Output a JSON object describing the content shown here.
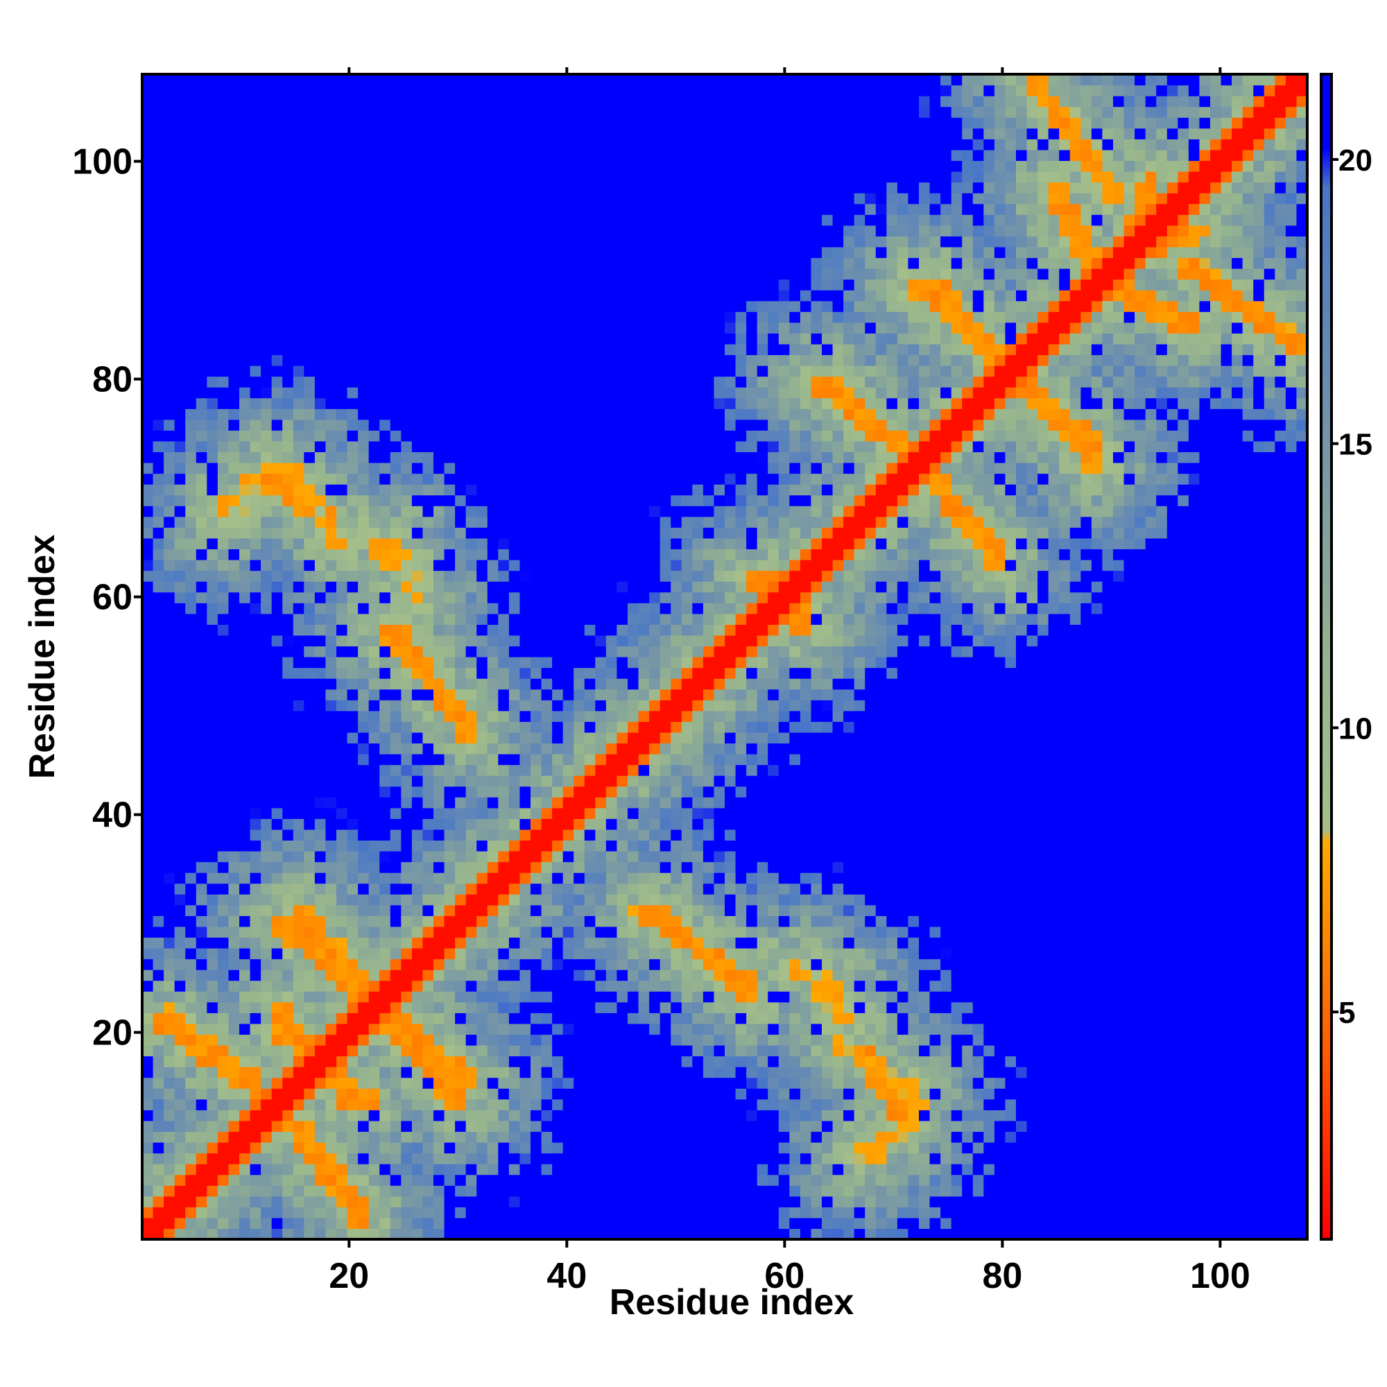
{
  "chart_data": {
    "type": "heatmap",
    "title": "",
    "xlabel": "Residue index",
    "ylabel": "Residue index",
    "n_residues": 108,
    "xlim": [
      1,
      108
    ],
    "ylim": [
      1,
      108
    ],
    "x_ticks": [
      20,
      40,
      60,
      80,
      100
    ],
    "y_ticks": [
      20,
      40,
      60,
      80,
      100
    ],
    "colorbar": {
      "range": [
        1,
        21.5
      ],
      "ticks": [
        5,
        10,
        15,
        20
      ],
      "stops": [
        {
          "value": 1,
          "color": "#ff0000"
        },
        {
          "value": 4.5,
          "color": "#ff6000"
        },
        {
          "value": 8,
          "color": "#ffaa00"
        },
        {
          "value": 8.2,
          "color": "#a6bf8a"
        },
        {
          "value": 11,
          "color": "#96b48e"
        },
        {
          "value": 15,
          "color": "#7595a8"
        },
        {
          "value": 19.5,
          "color": "#4876c8"
        },
        {
          "value": 20.2,
          "color": "#0000ff"
        },
        {
          "value": 21.5,
          "color": "#0000ff"
        }
      ]
    },
    "structure": {
      "diagonal": "value ~1-4 along i = j",
      "contact_bands": [
        {
          "from": [
            13,
            20
          ],
          "to": [
            22,
            13
          ],
          "value": 6
        },
        {
          "from": [
            2,
            21
          ],
          "to": [
            13,
            13
          ],
          "value": 6
        },
        {
          "from": [
            15,
            31
          ],
          "to": [
            22,
            23
          ],
          "value": 6
        },
        {
          "from": [
            23,
            21
          ],
          "to": [
            30,
            13
          ],
          "value": 6
        },
        {
          "from": [
            15,
            11
          ],
          "to": [
            21,
            3
          ],
          "value": 6
        },
        {
          "from": [
            24,
            57
          ],
          "to": [
            31,
            47
          ],
          "value": 6
        },
        {
          "from": [
            14,
            72
          ],
          "to": [
            19,
            65
          ],
          "value": 7
        },
        {
          "from": [
            8,
            68
          ],
          "to": [
            13,
            72
          ],
          "value": 7
        },
        {
          "from": [
            24,
            65
          ],
          "to": [
            26,
            60
          ],
          "value": 7
        },
        {
          "from": [
            48,
            31
          ],
          "to": [
            57,
            23
          ],
          "value": 6
        },
        {
          "from": [
            63,
            24
          ],
          "to": [
            66,
            21
          ],
          "value": 7
        },
        {
          "from": [
            67,
            18
          ],
          "to": [
            71,
            12
          ],
          "value": 6
        },
        {
          "from": [
            67,
            8
          ],
          "to": [
            71,
            11
          ],
          "value": 7
        },
        {
          "from": [
            57,
            62
          ],
          "to": [
            62,
            58
          ],
          "value": 6
        },
        {
          "from": [
            64,
            80
          ],
          "to": [
            72,
            73
          ],
          "value": 6
        },
        {
          "from": [
            73,
            72
          ],
          "to": [
            80,
            63
          ],
          "value": 6
        },
        {
          "from": [
            74,
            89
          ],
          "to": [
            80,
            82
          ],
          "value": 6
        },
        {
          "from": [
            82,
            81
          ],
          "to": [
            89,
            72
          ],
          "value": 6
        },
        {
          "from": [
            83,
            108
          ],
          "to": [
            91,
            97
          ],
          "value": 6
        },
        {
          "from": [
            90,
            89
          ],
          "to": [
            98,
            85
          ],
          "value": 6
        },
        {
          "from": [
            93,
            92
          ],
          "to": [
            99,
            94
          ],
          "value": 6
        }
      ],
      "background": "distance decays from ~10 near contacts to >20 far from the fold"
    }
  }
}
